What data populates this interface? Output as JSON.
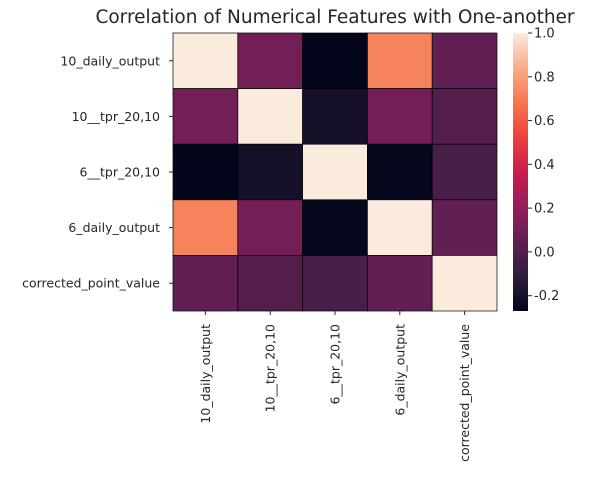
{
  "chart_data": {
    "type": "heatmap",
    "title": "Correlation of Numerical Features with One-another",
    "row_labels": [
      "10_daily_output",
      "10__tpr_20,10",
      "6__tpr_20,10",
      "6_daily_output",
      "corrected_point_value"
    ],
    "col_labels": [
      "10_daily_output",
      "10__tpr_20,10",
      "6__tpr_20,10",
      "6_daily_output",
      "corrected_point_value"
    ],
    "values": [
      [
        1.0,
        0.1,
        -0.27,
        0.72,
        0.05
      ],
      [
        0.1,
        1.0,
        -0.2,
        0.1,
        0.0
      ],
      [
        -0.27,
        -0.2,
        1.0,
        -0.26,
        -0.03
      ],
      [
        0.72,
        0.1,
        -0.26,
        1.0,
        0.05
      ],
      [
        0.05,
        0.0,
        -0.03,
        0.05,
        1.0
      ]
    ],
    "vmin": -0.27,
    "vmax": 1.0,
    "colormap": "rocket",
    "colorbar_ticks": [
      "-0.2",
      "0.0",
      "0.2",
      "0.4",
      "0.6",
      "0.8",
      "1.0"
    ],
    "colorbar_tick_values": [
      -0.2,
      0.0,
      0.2,
      0.4,
      0.6,
      0.8,
      1.0
    ],
    "cell_border_color": "#000000"
  }
}
